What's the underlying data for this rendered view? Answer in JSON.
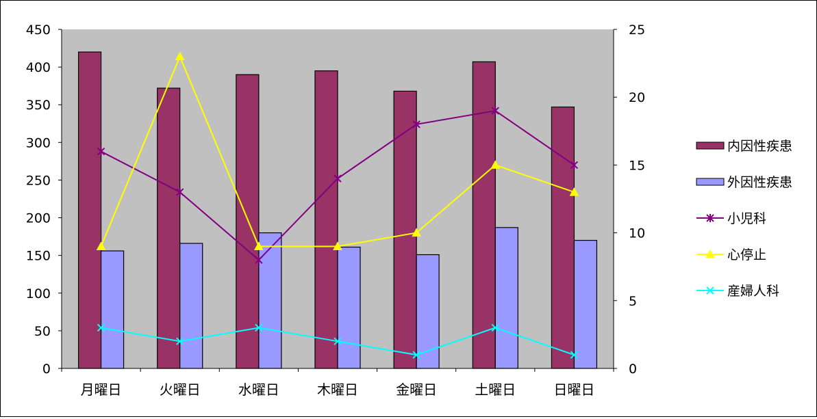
{
  "chart_data": {
    "type": "bar",
    "title": "",
    "xlabel": "",
    "ylabel": "",
    "y2label": "",
    "categories": [
      "月曜日",
      "火曜日",
      "水曜日",
      "木曜日",
      "金曜日",
      "土曜日",
      "日曜日"
    ],
    "ylim": [
      0,
      450
    ],
    "yticks": [
      0,
      50,
      100,
      150,
      200,
      250,
      300,
      350,
      400,
      450
    ],
    "y2lim": [
      0,
      25
    ],
    "y2ticks": [
      0,
      5,
      10,
      15,
      20,
      25
    ],
    "plot_background": "#C0C0C0",
    "grid": false,
    "legend_position": "right",
    "bar_series": [
      {
        "name": "内因性疾患",
        "values": [
          420,
          372,
          390,
          395,
          368,
          407,
          347
        ],
        "color": "#993366",
        "axis": "left"
      },
      {
        "name": "外因性疾患",
        "values": [
          156,
          166,
          180,
          161,
          151,
          187,
          170
        ],
        "color": "#9999FF",
        "axis": "left"
      }
    ],
    "line_series": [
      {
        "name": "小児科",
        "values": [
          16,
          13,
          8,
          14,
          18,
          19,
          15
        ],
        "color": "#800080",
        "marker": "star",
        "axis": "right"
      },
      {
        "name": "心停止",
        "values": [
          9,
          23,
          9,
          9,
          10,
          15,
          13
        ],
        "color": "#FFFF00",
        "marker": "triangle",
        "axis": "right"
      },
      {
        "name": "産婦人科",
        "values": [
          3,
          2,
          3,
          2,
          1,
          3,
          1
        ],
        "color": "#00FFFF",
        "marker": "x",
        "axis": "right"
      }
    ]
  }
}
